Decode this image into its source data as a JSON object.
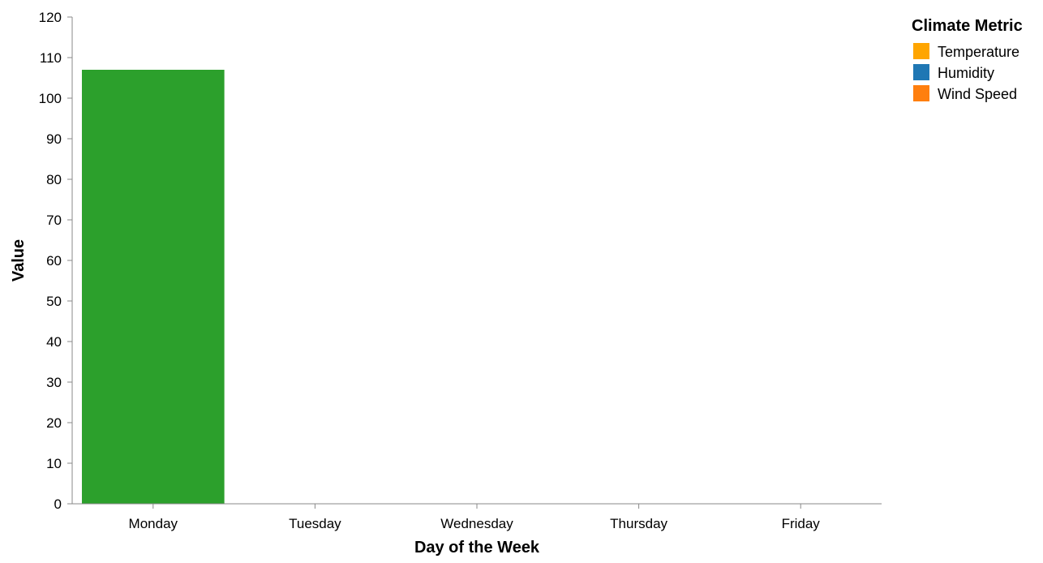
{
  "chart_data": {
    "type": "bar",
    "categories": [
      "Monday",
      "Tuesday",
      "Wednesday",
      "Thursday",
      "Friday"
    ],
    "series": [
      {
        "name": "",
        "values": [
          107,
          0,
          0,
          0,
          0
        ],
        "color": "#2ca02c"
      }
    ],
    "xlabel": "Day of the Week",
    "ylabel": "Value",
    "ylim": [
      0,
      120
    ],
    "yticks": [
      0,
      10,
      20,
      30,
      40,
      50,
      60,
      70,
      80,
      90,
      100,
      110,
      120
    ],
    "grid": false,
    "legend": {
      "title": "Climate Metric",
      "placement": "top-right",
      "entries": [
        {
          "label": "Temperature",
          "color": "#ffa500"
        },
        {
          "label": "Humidity",
          "color": "#1f77b4"
        },
        {
          "label": "Wind Speed",
          "color": "#ff7f0e"
        }
      ]
    }
  }
}
